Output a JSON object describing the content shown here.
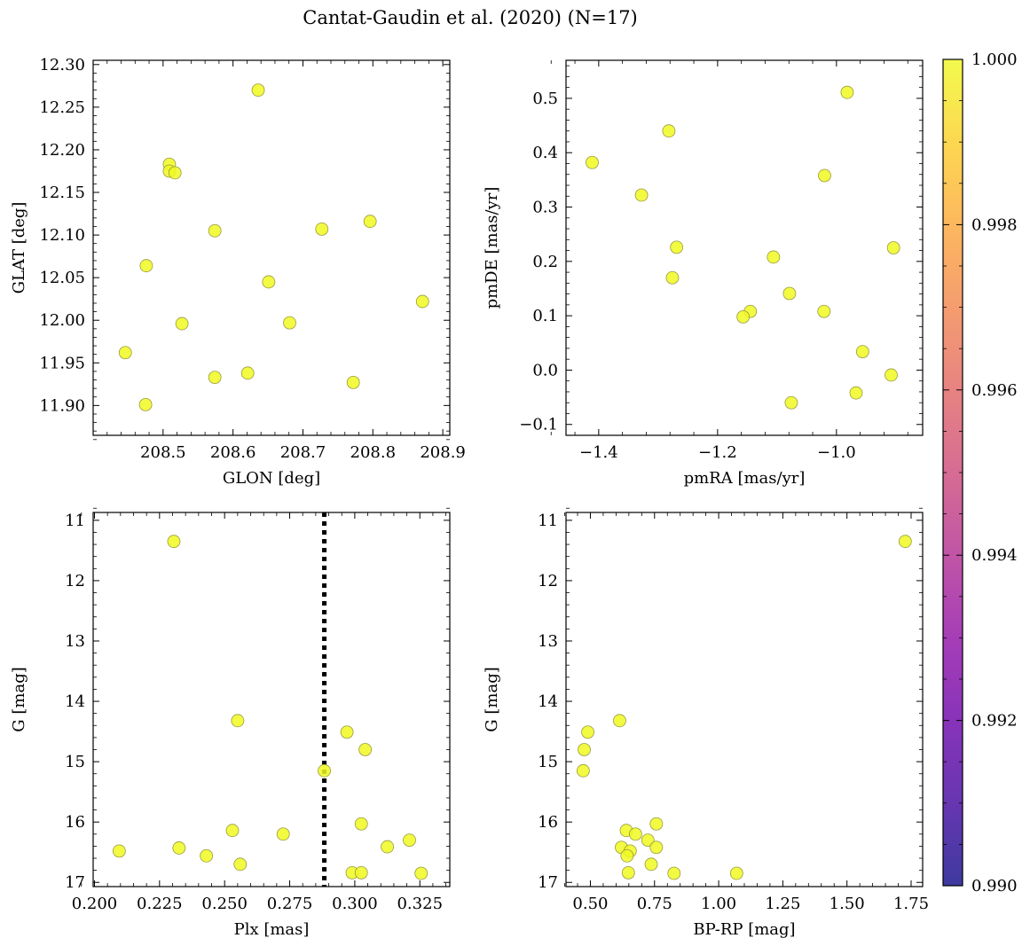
{
  "figure": {
    "title": "Cantat-Gaudin et al. (2020) (N=17)"
  },
  "colorbar": {
    "colormap": "plasma",
    "range": [
      0.99,
      1.0
    ],
    "ticks": [
      0.99,
      0.992,
      0.994,
      0.996,
      0.998,
      1.0
    ],
    "tick_labels": [
      "0.990",
      "0.992",
      "0.994",
      "0.996",
      "0.998",
      "1.000"
    ]
  },
  "marker": {
    "fill": "#f0f921",
    "edge": "#9a9a40",
    "value": 1.0
  },
  "chart_data": [
    {
      "type": "scatter",
      "xlabel": "GLON [deg]",
      "ylabel": "GLAT [deg]",
      "xlim": [
        208.4,
        208.91
      ],
      "ylim": [
        11.865,
        12.305
      ],
      "xticks": [
        208.5,
        208.6,
        208.7,
        208.8,
        208.9
      ],
      "xtick_labels": [
        "208.5",
        "208.6",
        "208.7",
        "208.8",
        "208.9"
      ],
      "yticks": [
        11.9,
        11.95,
        12.0,
        12.05,
        12.1,
        12.15,
        12.2,
        12.25,
        12.3
      ],
      "ytick_labels": [
        "11.90",
        "11.95",
        "12.00",
        "12.05",
        "12.10",
        "12.15",
        "12.20",
        "12.25",
        "12.30"
      ],
      "x": [
        208.636,
        208.509,
        208.509,
        208.517,
        208.574,
        208.727,
        208.796,
        208.476,
        208.651,
        208.527,
        208.681,
        208.446,
        208.871,
        208.574,
        208.621,
        208.772,
        208.475
      ],
      "y": [
        12.27,
        12.183,
        12.175,
        12.173,
        12.105,
        12.107,
        12.116,
        12.064,
        12.045,
        11.996,
        11.997,
        11.962,
        12.022,
        11.933,
        11.938,
        11.927,
        11.901
      ]
    },
    {
      "type": "scatter",
      "xlabel": "pmRA [mas/yr]",
      "ylabel": "pmDE [mas/yr]",
      "xlim": [
        -1.455,
        -0.855
      ],
      "ylim": [
        -0.12,
        0.57
      ],
      "xticks": [
        -1.4,
        -1.2,
        -1.0
      ],
      "xtick_labels": [
        "−1.4",
        "−1.2",
        "−1.0"
      ],
      "yticks": [
        -0.1,
        0.0,
        0.1,
        0.2,
        0.3,
        0.4,
        0.5
      ],
      "ytick_labels": [
        "−0.1",
        "0.0",
        "0.1",
        "0.2",
        "0.3",
        "0.4",
        "0.5"
      ],
      "x": [
        -1.411,
        -1.282,
        -1.328,
        -1.269,
        -1.276,
        -1.106,
        -1.02,
        -0.982,
        -0.904,
        -1.079,
        -1.145,
        -1.157,
        -1.021,
        -0.956,
        -0.908,
        -0.967,
        -1.076
      ],
      "y": [
        0.382,
        0.44,
        0.322,
        0.226,
        0.17,
        0.208,
        0.358,
        0.511,
        0.225,
        0.141,
        0.108,
        0.098,
        0.108,
        0.034,
        -0.009,
        -0.042,
        -0.06
      ]
    },
    {
      "type": "scatter",
      "xlabel": "Plx [mas]",
      "ylabel": "G [mag]",
      "xlim": [
        0.1995,
        0.3365
      ],
      "ylim": [
        17.07,
        10.87
      ],
      "inverted_y": true,
      "xticks": [
        0.2,
        0.225,
        0.25,
        0.275,
        0.3,
        0.325
      ],
      "xtick_labels": [
        "0.200",
        "0.225",
        "0.250",
        "0.275",
        "0.300",
        "0.325"
      ],
      "yticks": [
        11,
        12,
        13,
        14,
        15,
        16,
        17
      ],
      "ytick_labels": [
        "11",
        "12",
        "13",
        "14",
        "15",
        "16",
        "17"
      ],
      "vline": 0.2883,
      "x": [
        0.2305,
        0.255,
        0.297,
        0.304,
        0.2883,
        0.3025,
        0.253,
        0.2725,
        0.321,
        0.2095,
        0.2325,
        0.243,
        0.256,
        0.3125,
        0.299,
        0.3025,
        0.3255
      ],
      "y": [
        11.35,
        14.32,
        14.51,
        14.8,
        15.15,
        16.03,
        16.14,
        16.2,
        16.3,
        16.48,
        16.43,
        16.56,
        16.7,
        16.41,
        16.84,
        16.84,
        16.85
      ]
    },
    {
      "type": "scatter",
      "xlabel": "BP-RP [mag]",
      "ylabel": "G [mag]",
      "xlim": [
        0.405,
        1.795
      ],
      "ylim": [
        17.07,
        10.87
      ],
      "inverted_y": true,
      "xticks": [
        0.5,
        0.75,
        1.0,
        1.25,
        1.5,
        1.75
      ],
      "xtick_labels": [
        "0.50",
        "0.75",
        "1.00",
        "1.25",
        "1.50",
        "1.75"
      ],
      "yticks": [
        11,
        12,
        13,
        14,
        15,
        16,
        17
      ],
      "ytick_labels": [
        "11",
        "12",
        "13",
        "14",
        "15",
        "16",
        "17"
      ],
      "x": [
        1.727,
        0.614,
        0.49,
        0.476,
        0.472,
        0.757,
        0.64,
        0.676,
        0.724,
        0.621,
        0.655,
        0.643,
        0.757,
        0.737,
        0.648,
        0.826,
        1.07
      ],
      "y": [
        11.35,
        14.32,
        14.51,
        14.8,
        15.15,
        16.03,
        16.14,
        16.2,
        16.3,
        16.42,
        16.48,
        16.56,
        16.42,
        16.7,
        16.84,
        16.85,
        16.85
      ]
    }
  ]
}
